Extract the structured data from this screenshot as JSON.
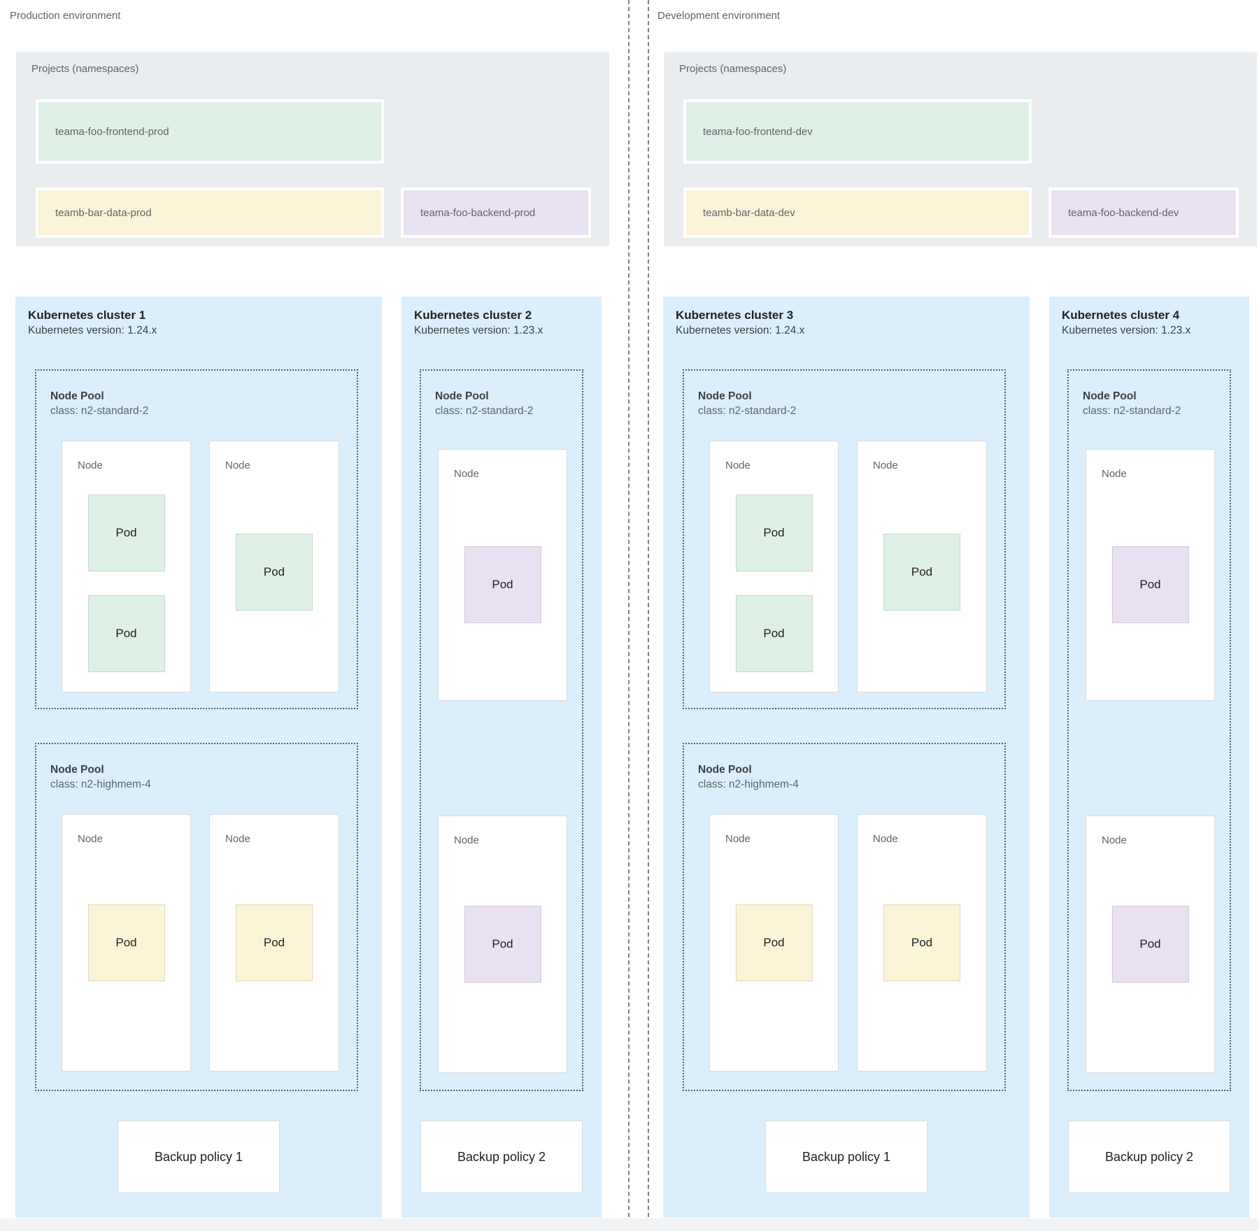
{
  "labels": {
    "node": "Node",
    "pod": "Pod"
  },
  "colors": {
    "cluster_blue": "#daeffb",
    "panel_gray": "#e9edef",
    "project_green": "#dff0e7",
    "project_yellow": "#fcf4d8",
    "project_purple": "#e9e2f3",
    "pod_green": "#dff0e7",
    "pod_yellow": "#fcf4d6",
    "pod_purple": "#e9e1f2",
    "text_gray": "#5f6368",
    "text_dark": "#202124"
  },
  "environments": [
    {
      "label": "Production environment",
      "projects_panel": {
        "title": "Projects (namespaces)",
        "frontend": "teama-foo-frontend-prod",
        "data": "teamb-bar-data-prod",
        "backend": "teama-foo-backend-prod"
      },
      "clusters": [
        {
          "title": "Kubernetes cluster 1",
          "version": "Kubernetes version: 1.24.x",
          "pool_a": {
            "name": "Node Pool",
            "class_line": "class: n2-standard-2"
          },
          "pool_b": {
            "name": "Node Pool",
            "class_line": "class: n2-highmem-4"
          },
          "backup": "Backup policy 1"
        },
        {
          "title": "Kubernetes cluster 2",
          "version": "Kubernetes version: 1.23.x",
          "pool": {
            "name": "Node Pool",
            "class_line": "class: n2-standard-2"
          },
          "backup": "Backup policy 2"
        }
      ]
    },
    {
      "label": "Development environment",
      "projects_panel": {
        "title": "Projects (namespaces)",
        "frontend": "teama-foo-frontend-dev",
        "data": "teamb-bar-data-dev",
        "backend": "teama-foo-backend-dev"
      },
      "clusters": [
        {
          "title": "Kubernetes cluster 3",
          "version": "Kubernetes version: 1.24.x",
          "pool_a": {
            "name": "Node Pool",
            "class_line": "class: n2-standard-2"
          },
          "pool_b": {
            "name": "Node Pool",
            "class_line": "class: n2-highmem-4"
          },
          "backup": "Backup policy 1"
        },
        {
          "title": "Kubernetes cluster 4",
          "version": "Kubernetes version: 1.23.x",
          "pool": {
            "name": "Node Pool",
            "class_line": "class: n2-standard-2"
          },
          "backup": "Backup policy 2"
        }
      ]
    }
  ]
}
